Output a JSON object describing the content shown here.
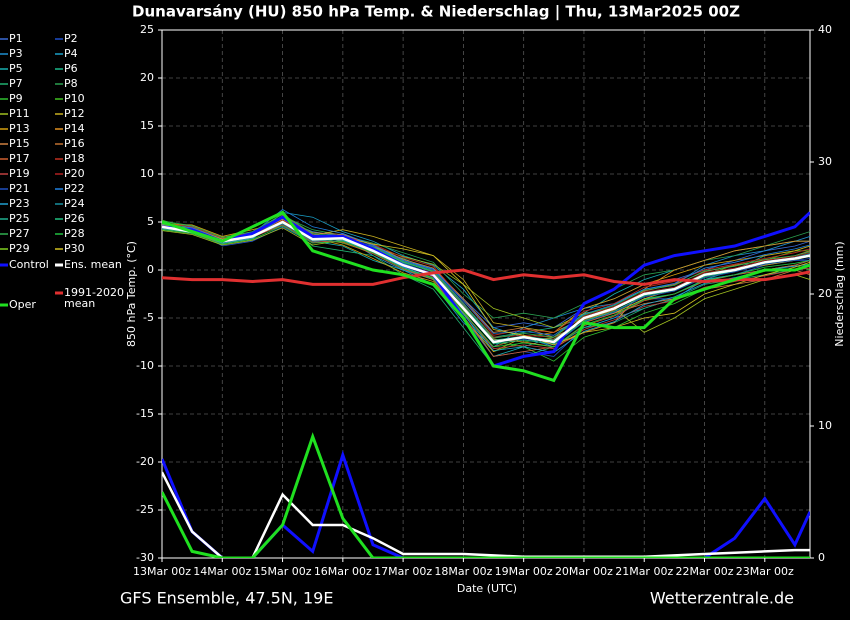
{
  "chart_data": {
    "type": "line",
    "title": "Dunavarsány  (HU)  850 hPa Temp. & Niederschlag | Thu, 13Mar2025 00Z",
    "xlabel": "Date (UTC)",
    "ylabel": "850 hPa Temp. (°C)",
    "y2label": "Niederschlag (mm)",
    "x": [
      0,
      0.5,
      1,
      1.5,
      2,
      2.5,
      3,
      3.5,
      4,
      4.5,
      5,
      5.5,
      6,
      6.5,
      7,
      7.5,
      8,
      8.5,
      9,
      9.5,
      10,
      10.5,
      10.75
    ],
    "xlim": [
      0,
      10.75
    ],
    "xticks": [
      {
        "value": 0,
        "label": "13Mar 00z"
      },
      {
        "value": 1,
        "label": "14Mar 00z"
      },
      {
        "value": 2,
        "label": "15Mar 00z"
      },
      {
        "value": 3,
        "label": "16Mar 00z"
      },
      {
        "value": 4,
        "label": "17Mar 00z"
      },
      {
        "value": 5,
        "label": "18Mar 00z"
      },
      {
        "value": 6,
        "label": "19Mar 00z"
      },
      {
        "value": 7,
        "label": "20Mar 00z"
      },
      {
        "value": 8,
        "label": "21Mar 00z"
      },
      {
        "value": 9,
        "label": "22Mar 00z"
      },
      {
        "value": 10,
        "label": "23Mar 00z"
      }
    ],
    "ylim": [
      -30,
      25
    ],
    "yticks": [
      -30,
      -25,
      -20,
      -15,
      -10,
      -5,
      0,
      5,
      10,
      15,
      20,
      25
    ],
    "y2lim": [
      0,
      40
    ],
    "y2ticks": [
      0,
      10,
      20,
      30,
      40
    ],
    "grid": true,
    "series": [
      {
        "name": "P1",
        "color": "#3a6bd6",
        "values": [
          4.8,
          4.5,
          3.2,
          4,
          5.8,
          3.5,
          3,
          2.5,
          1,
          0,
          -3,
          -6,
          -5.5,
          -6,
          -4,
          -3,
          -1.5,
          -1,
          0,
          1,
          2,
          2.5,
          3
        ]
      },
      {
        "name": "P2",
        "color": "#1f4fc9",
        "values": [
          4.2,
          4.3,
          2.5,
          3,
          4.5,
          2.8,
          3.8,
          2.5,
          0.2,
          -1,
          -5,
          -9,
          -8.5,
          -9,
          -6,
          -5,
          -3,
          -3,
          -1,
          -0.5,
          0.5,
          1,
          1
        ]
      },
      {
        "name": "P3",
        "color": "#1e8fd0",
        "values": [
          4.6,
          3.8,
          3.3,
          3.8,
          5.2,
          4,
          3.5,
          1.5,
          0,
          -1.5,
          -5.5,
          -8,
          -6,
          -5,
          -4,
          -3.5,
          -2,
          -1.5,
          0.5,
          1.5,
          2,
          3,
          3.5
        ]
      },
      {
        "name": "P4",
        "color": "#1aa0c8",
        "values": [
          4.4,
          4.1,
          2.8,
          3.2,
          6,
          5.5,
          4,
          3,
          1.5,
          0.5,
          -2,
          -6,
          -7,
          -8,
          -6,
          -5,
          -4,
          -3,
          -1,
          -0.5,
          0,
          0.5,
          1
        ]
      },
      {
        "name": "P5",
        "color": "#18b0b0",
        "values": [
          4.7,
          4.6,
          3,
          3.6,
          5.5,
          3,
          2.5,
          1,
          0,
          -1,
          -4.5,
          -9,
          -8,
          -7,
          -4.5,
          -2.5,
          -1,
          0,
          1,
          2,
          2.5,
          3,
          3
        ]
      },
      {
        "name": "P6",
        "color": "#1bb88a",
        "values": [
          5,
          4.2,
          3.1,
          3.4,
          4.8,
          3.8,
          3,
          2.2,
          1.2,
          0,
          -3.5,
          -7,
          -6.5,
          -6,
          -5,
          -4.5,
          -3,
          -2.5,
          -1,
          0,
          1.5,
          2,
          2.5
        ]
      },
      {
        "name": "P7",
        "color": "#20b070",
        "values": [
          4.3,
          3.9,
          2.7,
          3.3,
          5.1,
          2.5,
          2,
          1.5,
          -0.5,
          -2,
          -6,
          -10,
          -9,
          -8,
          -6,
          -5.5,
          -4,
          -3,
          -1.5,
          -1,
          -0.5,
          0,
          0.5
        ]
      },
      {
        "name": "P8",
        "color": "#2aa050",
        "values": [
          4.5,
          4.4,
          3.4,
          3.9,
          5.6,
          4.2,
          3.6,
          2.8,
          1.8,
          0.8,
          -2.5,
          -5,
          -4.5,
          -5,
          -3.5,
          -2,
          -0.5,
          0,
          1,
          1.5,
          2.5,
          3.5,
          4
        ]
      },
      {
        "name": "P9",
        "color": "#30c030",
        "values": [
          4.9,
          4,
          2.9,
          3.5,
          4.6,
          3,
          3.4,
          2.3,
          0.8,
          -0.2,
          -4,
          -7.5,
          -8,
          -9.5,
          -7,
          -6,
          -4.5,
          -3.5,
          -2,
          -1,
          0,
          0.5,
          0
        ]
      },
      {
        "name": "P10",
        "color": "#40c020",
        "values": [
          5.2,
          4.3,
          3.2,
          3.7,
          5.9,
          3.4,
          2.8,
          1.8,
          0.3,
          -0.8,
          -4.2,
          -8.5,
          -7.5,
          -7,
          -5.5,
          -4,
          -2.5,
          -2,
          -0.5,
          0.5,
          1,
          2,
          2
        ]
      },
      {
        "name": "P11",
        "color": "#a0c020",
        "values": [
          4.1,
          3.7,
          2.6,
          3.1,
          4.4,
          2.6,
          3.1,
          2.4,
          1.4,
          0.6,
          -1.5,
          -4,
          -5,
          -6,
          -4.5,
          -4,
          -6.5,
          -5,
          -3,
          -2,
          -1,
          -0.5,
          -1
        ]
      },
      {
        "name": "P12",
        "color": "#c8b020",
        "values": [
          4.6,
          4.2,
          3.3,
          3.6,
          5.3,
          3.6,
          4.2,
          3.5,
          2.5,
          1.5,
          -1,
          -5.5,
          -6,
          -6.5,
          -5,
          -4.5,
          -3,
          -2,
          -0.5,
          0,
          0.5,
          1,
          1.5
        ]
      },
      {
        "name": "P13",
        "color": "#d4a010",
        "values": [
          4.8,
          4.7,
          3.5,
          4.2,
          5,
          3.3,
          2.6,
          1.2,
          -0.3,
          -1.2,
          -5,
          -8.5,
          -7,
          -6.5,
          -4,
          -3,
          -1.5,
          -0.5,
          0.5,
          1,
          1.5,
          2,
          2.5
        ]
      },
      {
        "name": "P14",
        "color": "#e09020",
        "values": [
          4.4,
          4,
          3,
          3.5,
          4.9,
          3.1,
          3.2,
          2.1,
          0.4,
          -0.6,
          -3.8,
          -7.2,
          -7.5,
          -8,
          -6.5,
          -5.5,
          -2,
          0,
          1,
          2,
          2.5,
          3,
          3
        ]
      },
      {
        "name": "P15",
        "color": "#d08040",
        "values": [
          4.7,
          4.3,
          3.1,
          3.8,
          5.4,
          3.9,
          3.7,
          2.6,
          1.1,
          0.2,
          -3,
          -6.5,
          -6,
          -7,
          -5.5,
          -4.5,
          -3.5,
          -3,
          -2,
          -1.5,
          -1,
          0,
          -0.5
        ]
      },
      {
        "name": "P16",
        "color": "#c07030",
        "values": [
          4.2,
          3.8,
          2.8,
          3.3,
          5.7,
          3.7,
          3.4,
          2.2,
          0.6,
          -0.4,
          -4.5,
          -8,
          -7,
          -7.2,
          -5.2,
          -4.2,
          -2.2,
          -1.5,
          -0.2,
          0.5,
          1,
          1.5,
          2
        ]
      },
      {
        "name": "P17",
        "color": "#d06030",
        "values": [
          4.5,
          4.1,
          3.2,
          3.7,
          5.1,
          3.1,
          2.9,
          1.7,
          0.1,
          -1,
          -4.8,
          -9,
          -8.5,
          -8,
          -5.8,
          -4.8,
          -3.2,
          -2.5,
          -1.2,
          -0.5,
          0,
          0.5,
          1
        ]
      },
      {
        "name": "P18",
        "color": "#c03020",
        "values": [
          4.9,
          4.5,
          3.3,
          3.9,
          5.3,
          3.4,
          3.5,
          2.7,
          1.3,
          0.4,
          -3.2,
          -6.8,
          -6.2,
          -6.5,
          -4.3,
          -3.5,
          -1.8,
          -1.2,
          0,
          0.6,
          1.2,
          1.8,
          2.2
        ]
      },
      {
        "name": "P19",
        "color": "#c04040",
        "values": [
          4.3,
          4,
          2.9,
          3.4,
          4.7,
          2.9,
          3,
          1.9,
          0.5,
          -0.7,
          -4.4,
          -8.2,
          -7.8,
          -8.2,
          -6.2,
          -5.2,
          -3.8,
          -3.2,
          -1.8,
          -1.2,
          -0.6,
          0,
          0.2
        ]
      },
      {
        "name": "P20",
        "color": "#b02020",
        "values": [
          4.6,
          4.2,
          3,
          3.6,
          5.2,
          3.3,
          3.3,
          2,
          0.6,
          -0.3,
          -3.6,
          -7,
          -6.8,
          -7,
          -4.8,
          -3.8,
          -2.3,
          -1.8,
          -0.3,
          0.2,
          1,
          1.4,
          1.8
        ]
      },
      {
        "name": "P21",
        "color": "#2050c0",
        "values": [
          4.4,
          4.1,
          3.1,
          3.5,
          5,
          3.5,
          3.6,
          2.4,
          0.9,
          0,
          -3.4,
          -7.4,
          -7.2,
          -7.8,
          -5.4,
          -4.4,
          -2.8,
          -2.2,
          -0.8,
          -0.2,
          0.6,
          1,
          1.2
        ]
      },
      {
        "name": "P22",
        "color": "#2080e0",
        "values": [
          4.7,
          4.4,
          3.2,
          3.8,
          6.3,
          4.5,
          3.8,
          2.6,
          1,
          0.1,
          -3.2,
          -6.6,
          -6.4,
          -6.8,
          -4.6,
          -3.6,
          -2,
          -1.4,
          0.2,
          0.8,
          1.6,
          2.2,
          2.6
        ]
      },
      {
        "name": "P23",
        "color": "#20a0d0",
        "values": [
          4.5,
          4,
          2.8,
          3.3,
          5.5,
          3.2,
          3.1,
          1.8,
          0.3,
          -0.9,
          -4.6,
          -8.4,
          -8,
          -8.6,
          -6.4,
          -5.4,
          -3.6,
          -2.8,
          -1.4,
          -0.8,
          0,
          0.4,
          0.6
        ]
      },
      {
        "name": "P24",
        "color": "#1890a0",
        "values": [
          4.8,
          4.3,
          3.2,
          3.7,
          4.8,
          3,
          3.2,
          2.1,
          0.7,
          -0.4,
          -3.9,
          -7.6,
          -7.1,
          -7.4,
          -5.1,
          -4.1,
          -2.6,
          -2,
          -0.6,
          0,
          0.9,
          1.3,
          1.7
        ]
      },
      {
        "name": "P25",
        "color": "#20b090",
        "values": [
          4.3,
          3.9,
          2.9,
          3.4,
          5.4,
          3.6,
          3.4,
          2.3,
          0.8,
          -0.2,
          -3.7,
          -7.3,
          -6.9,
          -7.3,
          -5,
          -4,
          -2.4,
          -1.9,
          -0.4,
          0.1,
          0.8,
          1.2,
          1.5
        ]
      },
      {
        "name": "P26",
        "color": "#20c080",
        "values": [
          4.6,
          4.2,
          3.1,
          3.6,
          5,
          3.2,
          3.2,
          2,
          0.5,
          -0.6,
          -4.1,
          -7.7,
          -7.3,
          -7.7,
          -5.3,
          -4.3,
          -2.7,
          -2.1,
          -0.7,
          -0.1,
          0.7,
          1.1,
          1.4
        ]
      },
      {
        "name": "P27",
        "color": "#30b050",
        "values": [
          5.1,
          4.6,
          3.4,
          4,
          5.8,
          3.8,
          3.5,
          2.4,
          0.9,
          -0.1,
          -3.5,
          -7.1,
          -6.6,
          -7,
          -4.7,
          -3.7,
          -2.1,
          -1.6,
          -0.1,
          0.4,
          1.1,
          1.5,
          1.9
        ]
      },
      {
        "name": "P28",
        "color": "#20c040",
        "values": [
          4.2,
          3.8,
          2.7,
          3.2,
          4.6,
          2.8,
          3,
          1.8,
          0.2,
          -0.9,
          -4.4,
          -8,
          -7.6,
          -8,
          -5.7,
          -4.7,
          -3.1,
          -2.5,
          -1.1,
          -0.5,
          0.3,
          0.7,
          1
        ]
      },
      {
        "name": "P29",
        "color": "#80d020",
        "values": [
          4.5,
          4.1,
          3,
          3.5,
          5.1,
          3.3,
          3.3,
          2.1,
          0.6,
          -0.4,
          -4,
          -7.5,
          -7,
          -7.5,
          -5.1,
          -4.1,
          -2.5,
          -2,
          -0.5,
          0,
          0.8,
          1.2,
          1.5
        ]
      },
      {
        "name": "P30",
        "color": "#d0c020",
        "values": [
          4.7,
          4.3,
          3.2,
          3.8,
          5.3,
          3.5,
          3.4,
          2.7,
          2.2,
          1.5,
          -1.5,
          -6.2,
          -6.8,
          -7.8,
          -6.5,
          -6,
          -5,
          -4.5,
          -2.5,
          -1.5,
          -0.5,
          0.3,
          0.8
        ]
      },
      {
        "name": "Control",
        "color": "#1010ff",
        "values": [
          4.5,
          4.2,
          3,
          3.8,
          5.5,
          3.5,
          3.5,
          2.2,
          0.5,
          -0.5,
          -5,
          -10,
          -9,
          -8.5,
          -3.5,
          -2,
          0.5,
          1.5,
          2,
          2.5,
          3.5,
          4.5,
          6
        ],
        "precip": [
          7.5,
          2,
          0,
          0,
          2.5,
          0.5,
          7.8,
          1,
          0,
          0,
          0,
          0,
          0,
          0,
          0,
          0,
          0,
          0,
          0,
          1.5,
          4.5,
          1,
          3.5
        ]
      },
      {
        "name": "Ens. mean",
        "color": "#ffffff",
        "values": [
          4.5,
          4,
          3,
          3.5,
          5,
          3.2,
          3.3,
          2,
          0.5,
          -0.5,
          -4,
          -7.5,
          -7,
          -7.5,
          -5,
          -4,
          -2.5,
          -2,
          -0.5,
          0,
          0.8,
          1.2,
          1.5
        ],
        "precip": [
          6.5,
          2,
          0,
          0,
          4.8,
          2.5,
          2.5,
          1.5,
          0.3,
          0.3,
          0.3,
          0.2,
          0.1,
          0.1,
          0.1,
          0.1,
          0.1,
          0.2,
          0.3,
          0.4,
          0.5,
          0.6,
          0.6
        ]
      },
      {
        "name": "1991-2020 mean",
        "color": "#e03030",
        "values": [
          -0.8,
          -1,
          -1,
          -1.2,
          -1,
          -1.5,
          -1.5,
          -1.5,
          -0.8,
          -0.3,
          0,
          -1,
          -0.5,
          -0.8,
          -0.5,
          -1.2,
          -1.5,
          -1,
          -1.2,
          -1,
          -1,
          -0.5,
          -0.2
        ]
      },
      {
        "name": "Oper",
        "color": "#20e020",
        "values": [
          5,
          4,
          3,
          4.5,
          6,
          2,
          1,
          0,
          -0.5,
          -1.5,
          -5,
          -10,
          -10.5,
          -11.5,
          -5.5,
          -6,
          -6,
          -3,
          -2,
          -1,
          0,
          0,
          0.5
        ],
        "precip": [
          5,
          0.5,
          0,
          0,
          2.5,
          9.2,
          3,
          0,
          0,
          0,
          0,
          0,
          0,
          0,
          0,
          0,
          0,
          0,
          0,
          0,
          0,
          0,
          0
        ]
      }
    ]
  },
  "footer": {
    "left": "GFS Ensemble, 47.5N, 19E",
    "right": "Wetterzentrale.de"
  }
}
